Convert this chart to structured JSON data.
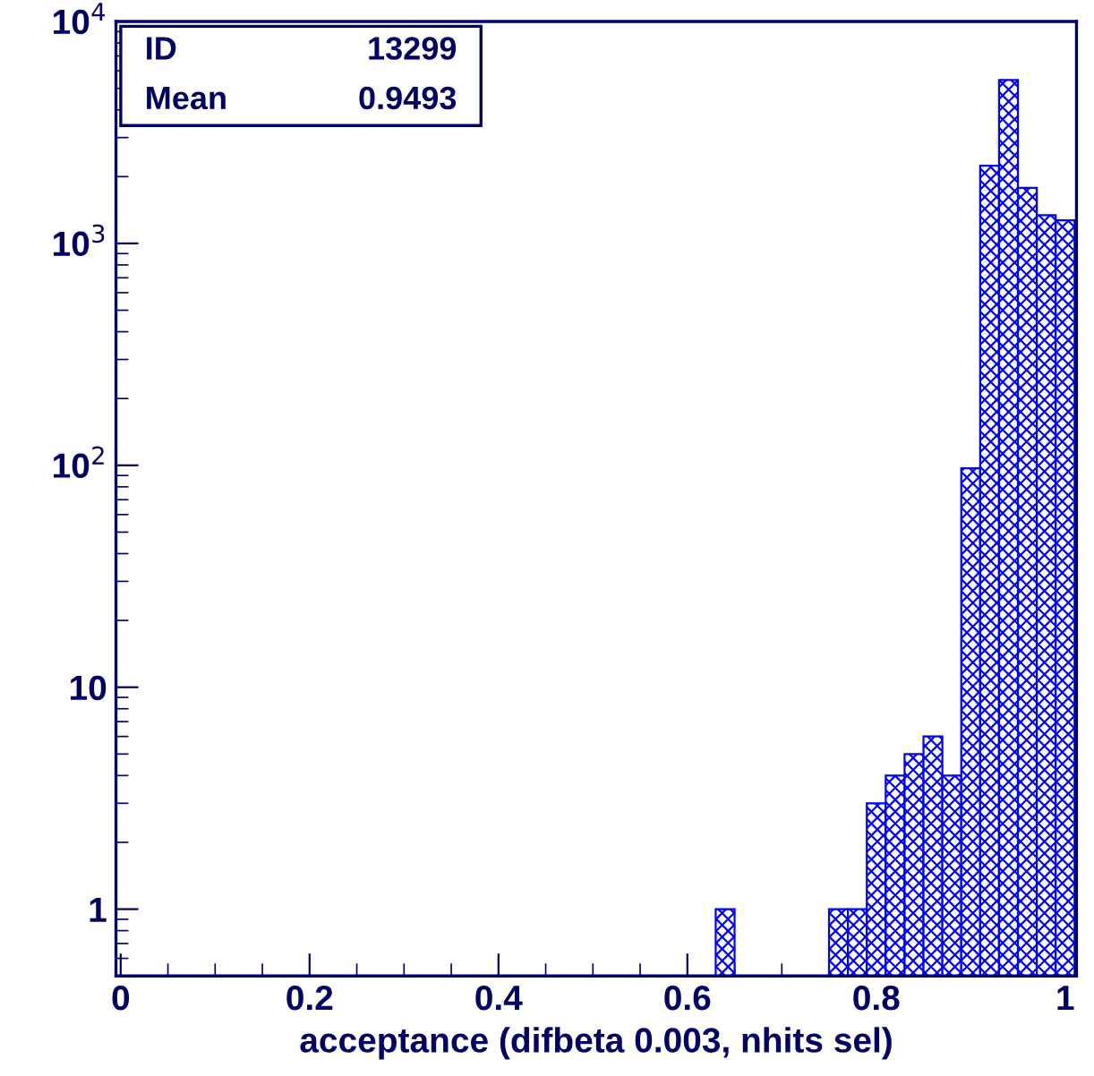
{
  "chart_data": {
    "type": "histogram",
    "xlabel": "acceptance (difbeta 0.003, nhits sel)",
    "bins": [
      0.63,
      0.65,
      0.67,
      0.69,
      0.71,
      0.73,
      0.75,
      0.77,
      0.79,
      0.81,
      0.83,
      0.85,
      0.87,
      0.89,
      0.91,
      0.93,
      0.95,
      0.97,
      0.99,
      1.01
    ],
    "values": [
      1,
      null,
      null,
      null,
      null,
      null,
      1,
      1,
      3,
      4,
      5,
      6,
      4,
      97,
      2240,
      5450,
      1780,
      1340,
      1270
    ],
    "color": "#0000ff",
    "log": "y",
    "xlim": [
      -0.005,
      1.012
    ],
    "ylim": [
      0.5,
      10000
    ],
    "xticks": [
      0,
      0.2,
      0.4,
      0.6,
      0.8,
      1
    ],
    "yticks": [
      1,
      10,
      {
        "value": 100,
        "label": "10$^{2}$"
      },
      {
        "value": 1000,
        "label": "10$^{3}$"
      },
      {
        "value": 10000,
        "label": "10$^{4}$"
      }
    ],
    "annotations": [
      "ID",
      "13299",
      "Mean",
      "0.9493"
    ]
  }
}
